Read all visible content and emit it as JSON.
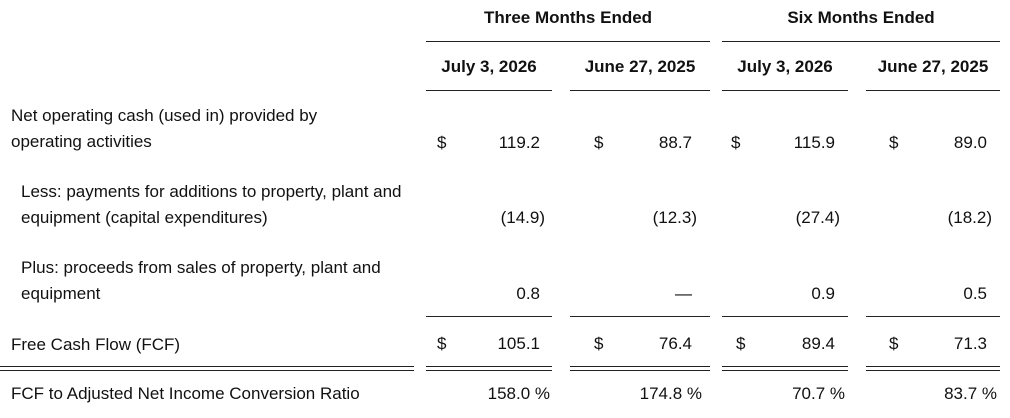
{
  "headers": {
    "group1": "Three Months Ended",
    "group2": "Six Months Ended",
    "col1": "July 3, 2026",
    "col2": "June 27, 2025",
    "col3": "July 3, 2026",
    "col4": "June 27, 2025"
  },
  "currency_symbol": "$",
  "rows": [
    {
      "label": "Net operating cash (used in) provided by operating activities",
      "values": [
        "119.2",
        "88.7",
        "115.9",
        "89.0"
      ]
    },
    {
      "label": "Less: payments for additions to property, plant and equipment (capital expenditures)",
      "values": [
        "(14.9)",
        "(12.3)",
        "(27.4)",
        "(18.2)"
      ]
    },
    {
      "label": "Plus: proceeds from sales of property, plant and equipment",
      "values": [
        "0.8",
        "—",
        "0.9",
        "0.5"
      ]
    },
    {
      "label": "Free Cash Flow (FCF)",
      "values": [
        "105.1",
        "76.4",
        "89.4",
        "71.3"
      ]
    },
    {
      "label": "FCF to Adjusted Net Income Conversion Ratio",
      "values": [
        "158.0 %",
        "174.8 %",
        "70.7 %",
        "83.7 %"
      ]
    }
  ]
}
